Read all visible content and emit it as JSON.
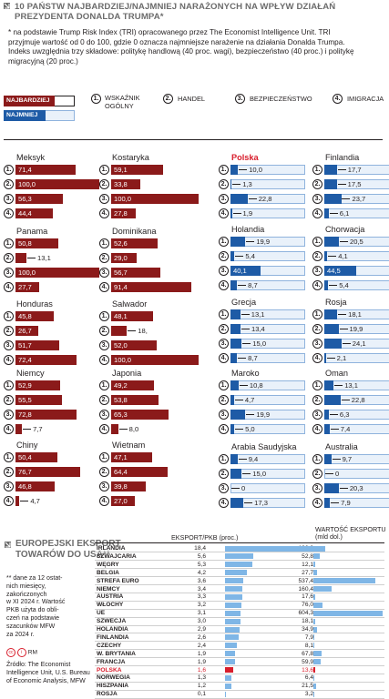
{
  "title": "10 PAŃSTW NAJBARDZIEJ/NAJMNIEJ NARAŻONYCH NA WPŁYW DZIAŁAŃ PREZYDENTA DONALDA TRUMPA*",
  "note": "* na podstawie Trump Risk Index (TRI) opracowanego przez The Economist Intelligence Unit. TRI przyjmuje wartość od 0 do 100, gdzie 0 oznacza najmniejsze narażenie na działania Donalda Trumpa. Indeks uwzględnia trzy składowe: politykę handlową (40 proc. wagi), bezpieczeństwo (40 proc.) i politykę migracyjną (20 proc.)",
  "legend": {
    "most": "NAJBARDZIEJ",
    "least": "NAJMNIEJ",
    "items": [
      {
        "num": "1.",
        "label": "WSKAŹNIK OGÓLNY"
      },
      {
        "num": "2.",
        "label": "HANDEL"
      },
      {
        "num": "3.",
        "label": "BEZPIECZEŃSTWO"
      },
      {
        "num": "4.",
        "label": "IMIGRACJA"
      }
    ]
  },
  "colors": {
    "most": "#8b1a1a",
    "least": "#1e5ba6",
    "track": "#e9f1fa",
    "highlight": "#d81e2c",
    "export_bar": "#7fb6e6"
  },
  "chart_data": [
    {
      "type": "bar",
      "title": "10 PAŃSTW NAJBARDZIEJ/NAJMNIEJ NARAŻONYCH NA WPŁYW DZIAŁAŃ PREZYDENTA DONALDA TRUMPA*",
      "xlim": [
        0,
        100
      ],
      "indices": [
        "1.",
        "2.",
        "3.",
        "4."
      ],
      "most": [
        {
          "name": "Meksyk",
          "values": [
            71.4,
            100.0,
            56.3,
            44.4
          ],
          "labels": [
            "71,4",
            "100,0",
            "56,3",
            "44,4"
          ]
        },
        {
          "name": "Kostaryka",
          "values": [
            59.1,
            33.8,
            100.0,
            27.8
          ],
          "labels": [
            "59,1",
            "33,8",
            "100,0",
            "27,8"
          ]
        },
        {
          "name": "Panama",
          "values": [
            50.8,
            13.1,
            100.0,
            27.7
          ],
          "labels": [
            "50,8",
            "13,1",
            "100,0",
            "27,7"
          ]
        },
        {
          "name": "Dominikana",
          "values": [
            52.6,
            29.0,
            56.7,
            91.4
          ],
          "labels": [
            "52,6",
            "29,0",
            "56,7",
            "91,4"
          ]
        },
        {
          "name": "Honduras",
          "values": [
            45.8,
            26.7,
            51.7,
            72.4
          ],
          "labels": [
            "45,8",
            "26,7",
            "51,7",
            "72,4"
          ]
        },
        {
          "name": "Salwador",
          "values": [
            48.1,
            18.0,
            52.0,
            100.0
          ],
          "labels": [
            "48,1",
            "18,",
            "52,0",
            "100,0"
          ]
        },
        {
          "name": "Niemcy",
          "values": [
            52.9,
            55.5,
            72.8,
            7.7
          ],
          "labels": [
            "52,9",
            "55,5",
            "72,8",
            "7,7"
          ]
        },
        {
          "name": "Japonia",
          "values": [
            49.2,
            53.8,
            65.3,
            8.0
          ],
          "labels": [
            "49,2",
            "53,8",
            "65,3",
            "8,0"
          ]
        },
        {
          "name": "Chiny",
          "values": [
            50.4,
            76.7,
            46.8,
            4.7
          ],
          "labels": [
            "50,4",
            "76,7",
            "46,8",
            "4,7"
          ]
        },
        {
          "name": "Wietnam",
          "values": [
            47.1,
            64.4,
            39.8,
            27.0
          ],
          "labels": [
            "47,1",
            "64,4",
            "39,8",
            "27,0"
          ]
        }
      ],
      "least": [
        {
          "name": "Polska",
          "values": [
            10.0,
            1.3,
            22.8,
            1.9
          ],
          "labels": [
            "10,0",
            "1,3",
            "22,8",
            "1,9"
          ]
        },
        {
          "name": "Finlandia",
          "values": [
            17.7,
            17.5,
            23.7,
            6.1
          ],
          "labels": [
            "17,7",
            "17,5",
            "23,7",
            "6,1"
          ]
        },
        {
          "name": "Holandia",
          "values": [
            19.9,
            5.4,
            40.1,
            8.7
          ],
          "labels": [
            "19,9",
            "5,4",
            "40,1",
            "8,7"
          ]
        },
        {
          "name": "Chorwacja",
          "values": [
            20.5,
            4.1,
            44.5,
            5.4
          ],
          "labels": [
            "20,5",
            "4,1",
            "44,5",
            "5,4"
          ]
        },
        {
          "name": "Grecja",
          "values": [
            13.1,
            13.4,
            15.0,
            8.7
          ],
          "labels": [
            "13,1",
            "13,4",
            "15,0",
            "8,7"
          ]
        },
        {
          "name": "Rosja",
          "values": [
            18.1,
            19.9,
            24.1,
            2.1
          ],
          "labels": [
            "18,1",
            "19,9",
            "24,1",
            "2,1"
          ]
        },
        {
          "name": "Maroko",
          "values": [
            10.8,
            4.7,
            19.9,
            5.0
          ],
          "labels": [
            "10,8",
            "4,7",
            "19,9",
            "5,0"
          ]
        },
        {
          "name": "Oman",
          "values": [
            13.1,
            22.8,
            6.3,
            7.4
          ],
          "labels": [
            "13,1",
            "22,8",
            "6,3",
            "7,4"
          ]
        },
        {
          "name": "Arabia Saudyjska",
          "values": [
            9.4,
            15.0,
            0,
            17.3
          ],
          "labels": [
            "9,4",
            "15,0",
            "0",
            "17,3"
          ]
        },
        {
          "name": "Australia",
          "values": [
            9.7,
            0,
            20.3,
            7.9
          ],
          "labels": [
            "9,7",
            "0",
            "20,3",
            "7,9"
          ]
        }
      ]
    },
    {
      "type": "table",
      "title": "EUROPEJSKI EKSPORT TOWARÓW DO USA**",
      "columns": [
        "EKSPORT/PKB (proc.)",
        "WARTOŚĆ EKSPORTU (mld dol.)"
      ],
      "highlight": "POLSKA",
      "rows": [
        {
          "name": "IRLANDIA",
          "export_gdp": 18.4,
          "export_gdp_label": "18,4",
          "value": 102.9,
          "value_label": "102,9"
        },
        {
          "name": "SZWAJCARIA",
          "export_gdp": 5.6,
          "export_gdp_label": "5,6",
          "value": 52.8,
          "value_label": "52,8"
        },
        {
          "name": "WĘGRY",
          "export_gdp": 5.3,
          "export_gdp_label": "5,3",
          "value": 12.1,
          "value_label": "12,1"
        },
        {
          "name": "BELGIA",
          "export_gdp": 4.2,
          "export_gdp_label": "4,2",
          "value": 27.7,
          "value_label": "27,7"
        },
        {
          "name": "STREFA EURO",
          "export_gdp": 3.6,
          "export_gdp_label": "3,6",
          "value": 537.4,
          "value_label": "537,4"
        },
        {
          "name": "NIEMCY",
          "export_gdp": 3.4,
          "export_gdp_label": "3,4",
          "value": 160.4,
          "value_label": "160,4"
        },
        {
          "name": "AUSTRIA",
          "export_gdp": 3.3,
          "export_gdp_label": "3,3",
          "value": 17.6,
          "value_label": "17,6"
        },
        {
          "name": "WŁOCHY",
          "export_gdp": 3.2,
          "export_gdp_label": "3,2",
          "value": 76.0,
          "value_label": "76,0"
        },
        {
          "name": "UE",
          "export_gdp": 3.1,
          "export_gdp_label": "3,1",
          "value": 604.3,
          "value_label": "604,3"
        },
        {
          "name": "SZWECJA",
          "export_gdp": 3.0,
          "export_gdp_label": "3,0",
          "value": 18.1,
          "value_label": "18,1"
        },
        {
          "name": "HOLANDIA",
          "export_gdp": 2.9,
          "export_gdp_label": "2,9",
          "value": 34.9,
          "value_label": "34,9"
        },
        {
          "name": "FINLANDIA",
          "export_gdp": 2.6,
          "export_gdp_label": "2,6",
          "value": 7.9,
          "value_label": "7,9"
        },
        {
          "name": "CZECHY",
          "export_gdp": 2.4,
          "export_gdp_label": "2,4",
          "value": 8.1,
          "value_label": "8,1"
        },
        {
          "name": "W. BRYTANIA",
          "export_gdp": 1.9,
          "export_gdp_label": "1,9",
          "value": 67.8,
          "value_label": "67,8"
        },
        {
          "name": "FRANCJA",
          "export_gdp": 1.9,
          "export_gdp_label": "1,9",
          "value": 59.9,
          "value_label": "59,9"
        },
        {
          "name": "POLSKA",
          "export_gdp": 1.6,
          "export_gdp_label": "1,6",
          "value": 13.6,
          "value_label": "13,6"
        },
        {
          "name": "NORWEGIA",
          "export_gdp": 1.3,
          "export_gdp_label": "1,3",
          "value": 6.4,
          "value_label": "6,4"
        },
        {
          "name": "HISZPANIA",
          "export_gdp": 1.2,
          "export_gdp_label": "1,2",
          "value": 21.5,
          "value_label": "21,5"
        },
        {
          "name": "ROSJA",
          "export_gdp": 0.1,
          "export_gdp_label": "0,1",
          "value": 3.2,
          "value_label": "3,2"
        }
      ]
    }
  ],
  "table": {
    "title_line1": "EUROPEJSKI EKSPORT",
    "title_line2": "TOWARÓW DO USA**",
    "col1_header": "EKSPORT/PKB (proc.)",
    "col2_header_line1": "WARTOŚĆ EKSPORTU",
    "col2_header_line2": "(mld dol.)"
  },
  "footnote": [
    "** dane za 12 ostat-",
    "nich miesięcy,",
    "zakończonych",
    "w XI 2024 r. Wartość",
    "PKB użyta do obli-",
    "czeń na podstawie",
    "szacunków MFW",
    "za 2024 r."
  ],
  "credit": "RM",
  "source": [
    "Źródło: The Economist",
    "Intelligence Unit, U.S. Bureau",
    "of Economic Analysis, MFW"
  ]
}
